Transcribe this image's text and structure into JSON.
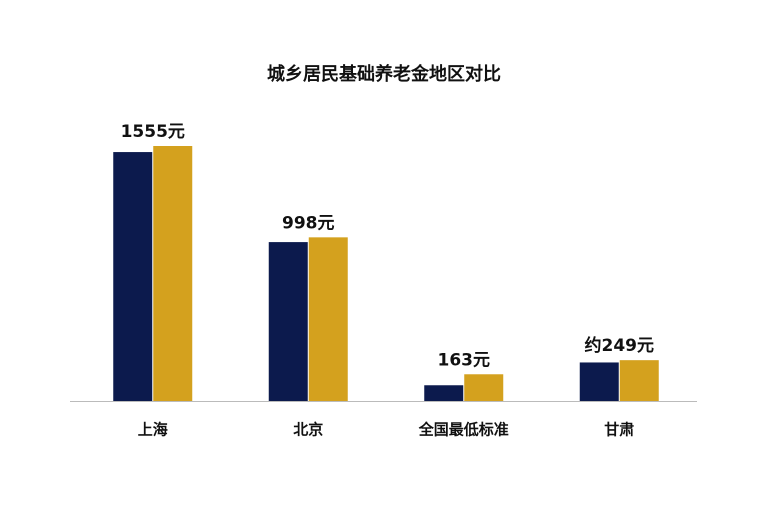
{
  "chart_data": {
    "type": "bar",
    "title": "城乡居民基础养老金地区对比",
    "categories": [
      "上海",
      "北京",
      "全国最低标准",
      "甘肃"
    ],
    "series": [
      {
        "color": "#0c1a4d",
        "values": [
          1518,
          969,
          96,
          235
        ]
      },
      {
        "color": "#d4a11e",
        "values": [
          1555,
          998,
          163,
          249
        ],
        "value_labels": [
          "1555元",
          "998元",
          "163元",
          "约249元"
        ]
      }
    ]
  }
}
